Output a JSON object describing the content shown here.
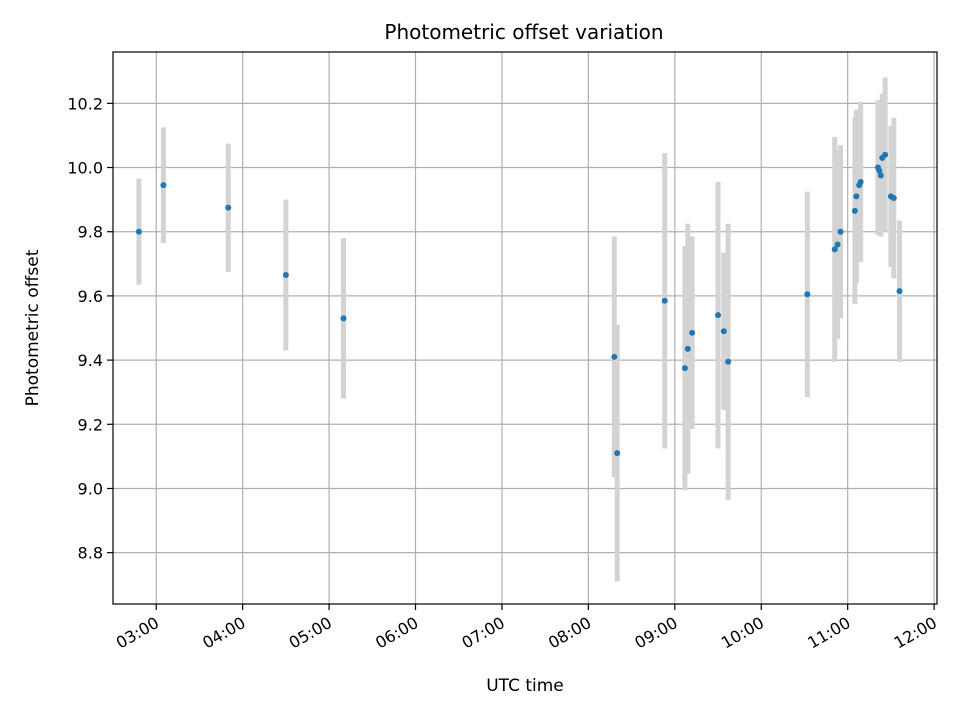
{
  "chart_data": {
    "type": "scatter",
    "title": "Photometric offset variation",
    "xlabel": "UTC time",
    "ylabel": "Photometric offset",
    "xlim": [
      "02:30",
      "12:02"
    ],
    "ylim": [
      8.64,
      10.36
    ],
    "x_ticks": [
      "03:00",
      "04:00",
      "05:00",
      "06:00",
      "07:00",
      "08:00",
      "09:00",
      "10:00",
      "11:00",
      "12:00"
    ],
    "y_ticks": [
      8.8,
      9.0,
      9.2,
      9.4,
      9.6,
      9.8,
      10.0,
      10.2
    ],
    "grid": true,
    "colors": {
      "point": "#1f77b4",
      "errorbar": "#d3d3d3",
      "grid": "#b0b0b0"
    },
    "series": [
      {
        "points": [
          {
            "x": "02:48",
            "y": 9.8,
            "err": 0.165
          },
          {
            "x": "03:05",
            "y": 9.945,
            "err": 0.18
          },
          {
            "x": "03:50",
            "y": 9.875,
            "err": 0.2
          },
          {
            "x": "04:30",
            "y": 9.665,
            "err": 0.235
          },
          {
            "x": "05:10",
            "y": 9.53,
            "err": 0.25
          },
          {
            "x": "08:18",
            "y": 9.41,
            "err": 0.375
          },
          {
            "x": "08:20",
            "y": 9.11,
            "err": 0.4
          },
          {
            "x": "08:53",
            "y": 9.585,
            "err": 0.46
          },
          {
            "x": "09:07",
            "y": 9.375,
            "err": 0.38
          },
          {
            "x": "09:09",
            "y": 9.435,
            "err": 0.39
          },
          {
            "x": "09:12",
            "y": 9.485,
            "err": 0.3
          },
          {
            "x": "09:30",
            "y": 9.54,
            "err": 0.415
          },
          {
            "x": "09:34",
            "y": 9.49,
            "err": 0.245
          },
          {
            "x": "09:37",
            "y": 9.395,
            "err": 0.43
          },
          {
            "x": "10:32",
            "y": 9.605,
            "err": 0.32
          },
          {
            "x": "10:51",
            "y": 9.745,
            "err": 0.35
          },
          {
            "x": "10:53",
            "y": 9.76,
            "err": 0.295
          },
          {
            "x": "10:55",
            "y": 9.8,
            "err": 0.27
          },
          {
            "x": "11:05",
            "y": 9.865,
            "err": 0.29
          },
          {
            "x": "11:06",
            "y": 9.91,
            "err": 0.27
          },
          {
            "x": "11:08",
            "y": 9.945,
            "err": 0.23
          },
          {
            "x": "11:09",
            "y": 9.955,
            "err": 0.25
          },
          {
            "x": "11:21",
            "y": 10.0,
            "err": 0.21
          },
          {
            "x": "11:22",
            "y": 9.99,
            "err": 0.2
          },
          {
            "x": "11:23",
            "y": 9.975,
            "err": 0.19
          },
          {
            "x": "11:24",
            "y": 10.03,
            "err": 0.2
          },
          {
            "x": "11:26",
            "y": 10.04,
            "err": 0.24
          },
          {
            "x": "11:30",
            "y": 9.91,
            "err": 0.22
          },
          {
            "x": "11:32",
            "y": 9.905,
            "err": 0.25
          },
          {
            "x": "11:36",
            "y": 9.615,
            "err": 0.22
          }
        ]
      }
    ]
  }
}
